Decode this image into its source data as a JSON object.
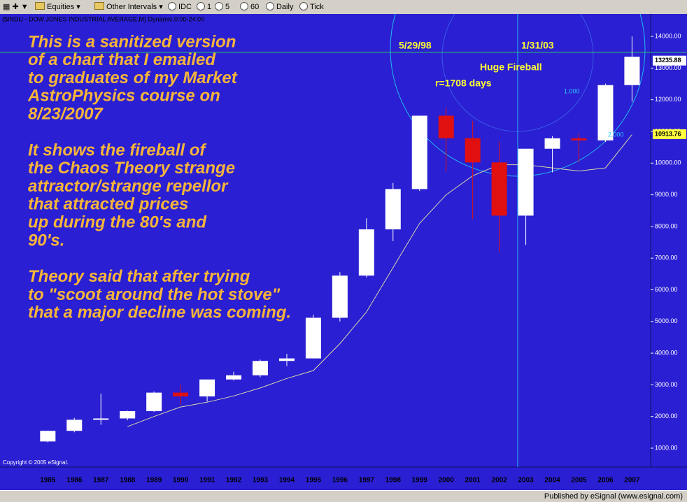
{
  "toolbar": {
    "items": [
      "Equities",
      "Other Intervals",
      "IDC",
      "1",
      "5",
      "60",
      "Daily",
      "Tick"
    ]
  },
  "chart_data": {
    "type": "candlestick",
    "title": "($INDU - DOW JONES INDUSTRIAL AVERAGE,M) Dynamic,0:00-24:00",
    "copyright": "Copyright © 2005 eSignal.",
    "x": [
      1985,
      1986,
      1987,
      1988,
      1989,
      1990,
      1991,
      1992,
      1993,
      1994,
      1995,
      1996,
      1997,
      1998,
      1999,
      2000,
      2001,
      2002,
      2003,
      2004,
      2005,
      2006,
      2007
    ],
    "open": [
      1212,
      1547,
      1896,
      1939,
      2169,
      2753,
      2634,
      3169,
      3301,
      3754,
      3834,
      5117,
      6448,
      7908,
      9181,
      11497,
      10787,
      10022,
      8342,
      10454,
      10783,
      10718,
      12463
    ],
    "high": [
      1553,
      1956,
      2722,
      2184,
      2791,
      2999,
      3168,
      3413,
      3794,
      3978,
      5216,
      6560,
      8259,
      9374,
      11497,
      11750,
      11337,
      10673,
      10454,
      10854,
      10940,
      12510,
      14000
    ],
    "low": [
      1185,
      1502,
      1739,
      1879,
      2145,
      2365,
      2470,
      3137,
      3242,
      3593,
      3832,
      5000,
      6391,
      7539,
      9120,
      9731,
      8235,
      7197,
      7416,
      9708,
      10012,
      10667,
      11939
    ],
    "close": [
      1547,
      1896,
      1939,
      2169,
      2753,
      2634,
      3169,
      3301,
      3754,
      3834,
      5117,
      6448,
      7908,
      9181,
      11497,
      10787,
      10022,
      8342,
      10454,
      10783,
      10718,
      12463,
      13358
    ],
    "up_color": "#ffffff",
    "down_color": "#e01010",
    "moving_average": {
      "color": "#d8d8a8",
      "x": [
        1988,
        1989,
        1990,
        1991,
        1992,
        1993,
        1994,
        1995,
        1996,
        1997,
        1998,
        1999,
        2000,
        2001,
        2002,
        2003,
        2004,
        2005,
        2006,
        2007
      ],
      "values": [
        1680,
        2000,
        2300,
        2450,
        2650,
        2900,
        3200,
        3450,
        4300,
        5300,
        6700,
        8100,
        9000,
        9600,
        9950,
        9950,
        9850,
        9750,
        9850,
        10900
      ]
    },
    "xlim": [
      1983.2,
      2007.7
    ],
    "ylim": [
      404,
      14664
    ],
    "yticks": [
      {
        "value": 1000,
        "label": "1000.00"
      },
      {
        "value": 2000,
        "label": "2000.00"
      },
      {
        "value": 3000,
        "label": "3000.00"
      },
      {
        "value": 4000,
        "label": "4000.00"
      },
      {
        "value": 5000,
        "label": "5000.00"
      },
      {
        "value": 6000,
        "label": "6000.00"
      },
      {
        "value": 7000,
        "label": "7000.00"
      },
      {
        "value": 8000,
        "label": "8000.00"
      },
      {
        "value": 9000,
        "label": "9000.00"
      },
      {
        "value": 10000,
        "label": "10000.00"
      },
      {
        "value": 11000,
        "label": "11000.00"
      },
      {
        "value": 12000,
        "label": "12000.00"
      },
      {
        "value": 13000,
        "label": "13000.00"
      },
      {
        "value": 14000,
        "label": "14000.00"
      }
    ],
    "horizontal_line": {
      "value": 13500,
      "color": "#30d060"
    },
    "price_tags": [
      {
        "value": 13235.88,
        "label": "13235.88",
        "color": "#ffffff"
      },
      {
        "value": 10913.76,
        "label": "10913.76",
        "color": "#ffff40"
      }
    ],
    "annotations": [
      "5/29/98",
      "1/31/03",
      "Huge Fireball",
      "r=1708 days",
      "1.000",
      "2.000"
    ],
    "note": [
      [
        "This is a sanitized version",
        "of a chart that I emailed",
        "to graduates of my Market",
        "AstroPhysics course on",
        "8/23/2007"
      ],
      [
        "It shows the fireball of",
        "the Chaos Theory strange",
        "attractor/strange repellor",
        "that attracted prices",
        "up during the 80's and",
        "90's."
      ],
      [
        "Theory said that after trying",
        "to \"scoot around the hot stove\"",
        "that a major decline was coming."
      ]
    ]
  },
  "footer": "Published by eSignal (www.esignal.com)"
}
